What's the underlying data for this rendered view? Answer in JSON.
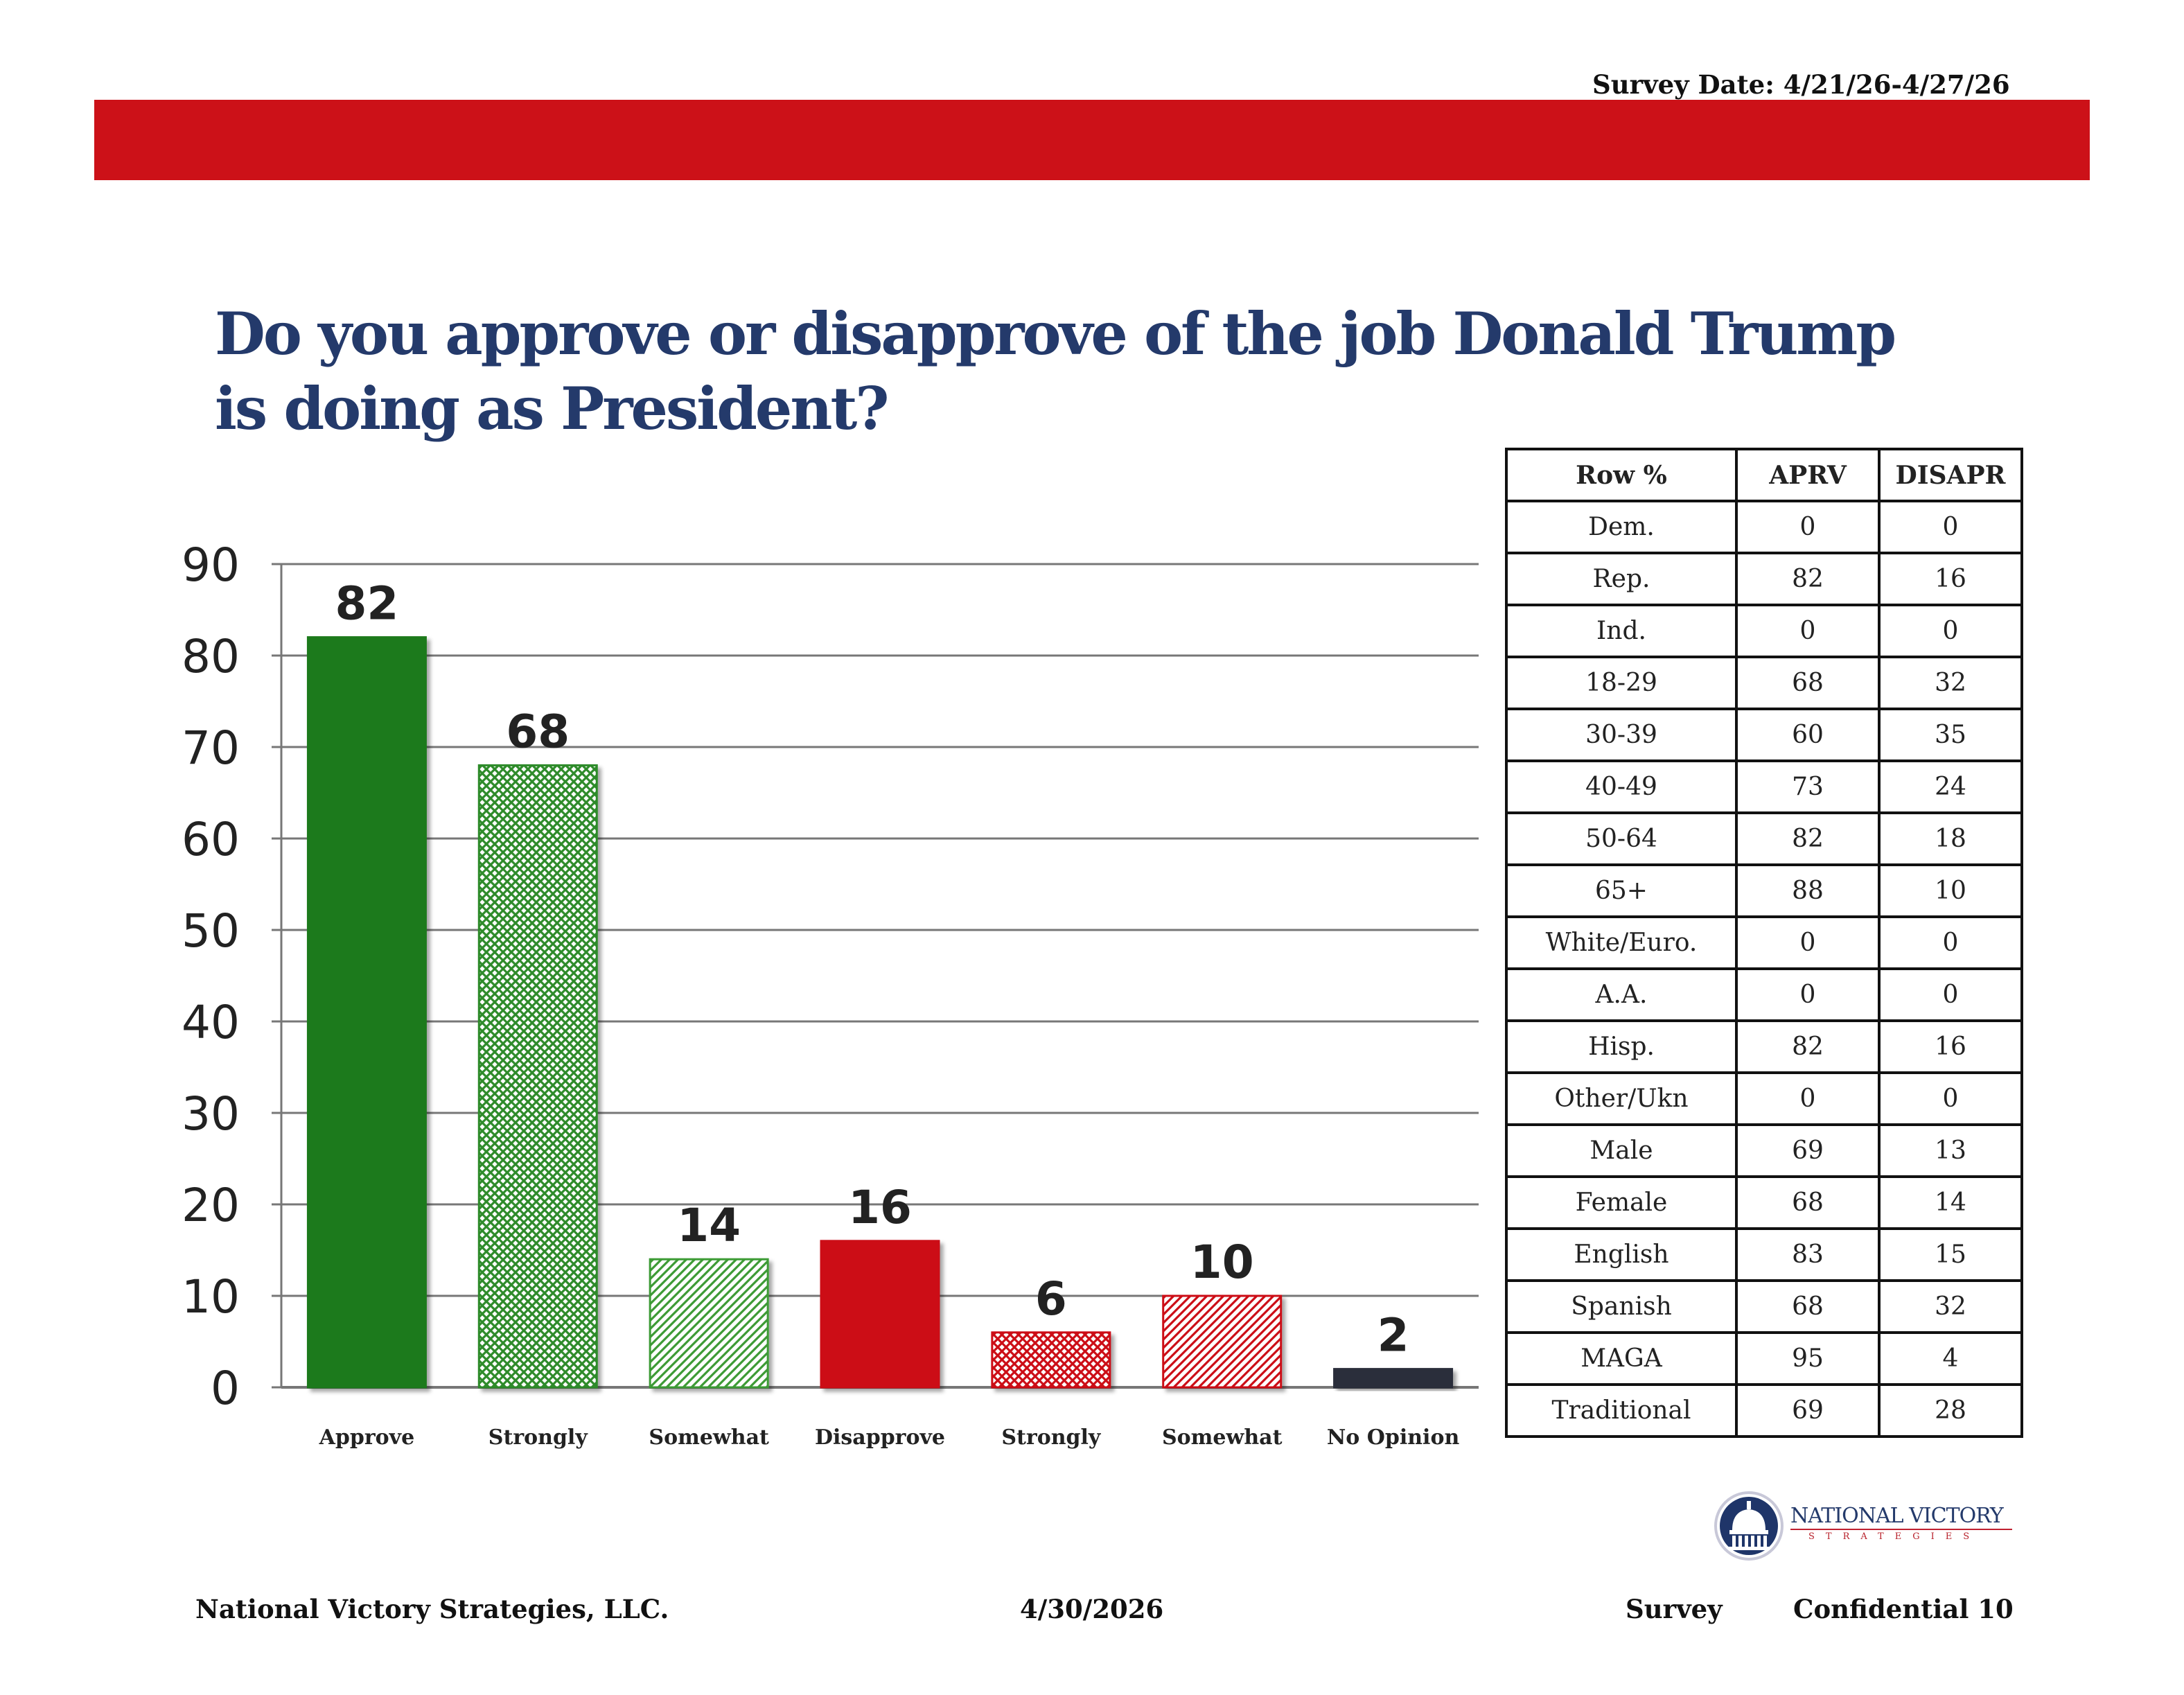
{
  "header": {
    "survey_date": "Survey Date: 4/21/26-4/27/26",
    "band_color": "#cc1118"
  },
  "question": "Do you approve or disapprove of the job Donald Trump is doing as President?",
  "chart_data": {
    "type": "bar",
    "categories": [
      "Approve",
      "Strongly",
      "Somewhat",
      "Disapprove",
      "Strongly",
      "Somewhat",
      "No Opinion"
    ],
    "values": [
      82,
      68,
      14,
      16,
      6,
      10,
      2
    ],
    "data_labels": [
      "82",
      "68",
      "14",
      "16",
      "6",
      "10",
      "2"
    ],
    "ylim": [
      0,
      90
    ],
    "yticks": [
      "0",
      "10",
      "20",
      "30",
      "40",
      "50",
      "60",
      "70",
      "80",
      "90"
    ],
    "grid": true,
    "bar_colors": [
      "#1f7a1a",
      "#2e8b2a",
      "#3c9b36",
      "#cc1118",
      "#cc1118",
      "#cc1118",
      "#2a2d3a"
    ],
    "bar_styles": [
      "solid",
      "crosshatch",
      "diagonal",
      "solid",
      "crosshatch",
      "diagonal",
      "solid"
    ]
  },
  "table": {
    "headers": [
      "Row %",
      "APRV",
      "DISAPR"
    ],
    "rows": [
      [
        "Dem.",
        "0",
        "0"
      ],
      [
        "Rep.",
        "82",
        "16"
      ],
      [
        "Ind.",
        "0",
        "0"
      ],
      [
        "18-29",
        "68",
        "32"
      ],
      [
        "30-39",
        "60",
        "35"
      ],
      [
        "40-49",
        "73",
        "24"
      ],
      [
        "50-64",
        "82",
        "18"
      ],
      [
        "65+",
        "88",
        "10"
      ],
      [
        "White/Euro.",
        "0",
        "0"
      ],
      [
        "A.A.",
        "0",
        "0"
      ],
      [
        "Hisp.",
        "82",
        "16"
      ],
      [
        "Other/Ukn",
        "0",
        "0"
      ],
      [
        "Male",
        "69",
        "13"
      ],
      [
        "Female",
        "68",
        "14"
      ],
      [
        "English",
        "83",
        "15"
      ],
      [
        "Spanish",
        "68",
        "32"
      ],
      [
        "MAGA",
        "95",
        "4"
      ],
      [
        "Traditional",
        "69",
        "28"
      ]
    ]
  },
  "logo": {
    "name": "NATIONAL VICTORY",
    "sub": "STRATEGIES",
    "icon": "capitol-dome-icon"
  },
  "footer": {
    "company": "National Victory Strategies, LLC.",
    "date": "4/30/2026",
    "survey": "Survey",
    "confidential": "Confidential 10"
  }
}
